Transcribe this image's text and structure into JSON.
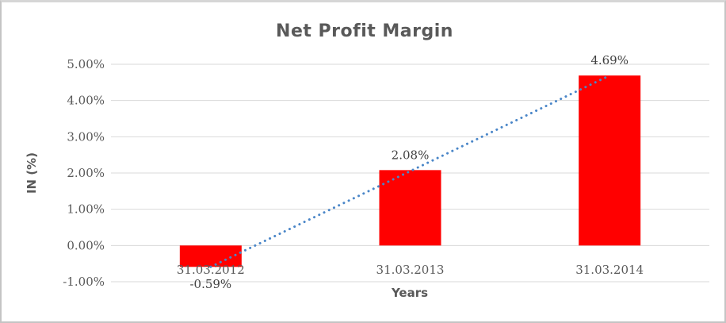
{
  "chart_data": {
    "type": "bar",
    "title": "Net Profit Margin",
    "xlabel": "Years",
    "ylabel": "IN (%)",
    "categories": [
      "31.03.2012",
      "31.03.2013",
      "31.03.2014"
    ],
    "values": [
      -0.59,
      2.08,
      4.69
    ],
    "data_labels": [
      "-0.59%",
      "2.08%",
      "4.69%"
    ],
    "yticks": [
      {
        "label": "5.00%",
        "value": 5
      },
      {
        "label": "4.00%",
        "value": 4
      },
      {
        "label": "3.00%",
        "value": 3
      },
      {
        "label": "2.00%",
        "value": 2
      },
      {
        "label": "1.00%",
        "value": 1
      },
      {
        "label": "0.00%",
        "value": 0
      },
      {
        "label": "-1.00%",
        "value": -1
      }
    ],
    "ylim": [
      -1,
      5
    ],
    "grid": true,
    "legend": "none",
    "trendline": {
      "type": "linear",
      "style": "dotted"
    },
    "colors": {
      "bar": "#ff0000",
      "trendline": "#4a86c8",
      "gridline": "#d9d9d9",
      "axis_text": "#595959",
      "title_text": "#595959",
      "data_label_text": "#3f3f3f"
    }
  }
}
